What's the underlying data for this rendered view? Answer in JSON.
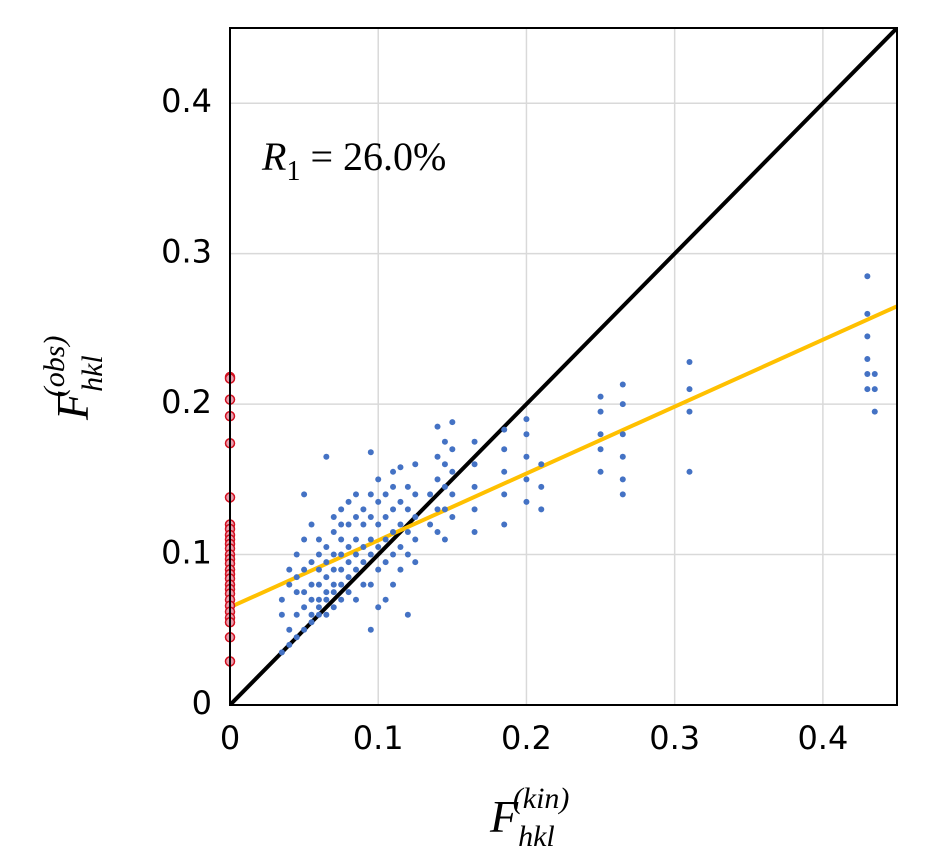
{
  "chart_data": {
    "type": "scatter",
    "xlabel": {
      "base": "F",
      "sub": "hkl",
      "sup": "(kin)"
    },
    "ylabel": {
      "base": "F",
      "sub": "hkl",
      "sup": "(obs)"
    },
    "annotation": {
      "base": "R",
      "sub": "1",
      "rest": " = 26.0%"
    },
    "xlim": [
      0,
      0.45
    ],
    "ylim": [
      0,
      0.45
    ],
    "xticks": [
      0,
      0.1,
      0.2,
      0.3,
      0.4
    ],
    "yticks": [
      0,
      0.1,
      0.2,
      0.3,
      0.4
    ],
    "grid": true,
    "series": [
      {
        "color": "#4472c4",
        "x": [
          0.035,
          0.035,
          0.035,
          0.04,
          0.04,
          0.04,
          0.04,
          0.045,
          0.045,
          0.045,
          0.045,
          0.045,
          0.05,
          0.05,
          0.05,
          0.05,
          0.05,
          0.05,
          0.055,
          0.055,
          0.055,
          0.055,
          0.055,
          0.055,
          0.06,
          0.06,
          0.06,
          0.06,
          0.06,
          0.06,
          0.06,
          0.065,
          0.065,
          0.065,
          0.065,
          0.065,
          0.065,
          0.065,
          0.07,
          0.07,
          0.07,
          0.07,
          0.07,
          0.07,
          0.07,
          0.075,
          0.075,
          0.075,
          0.075,
          0.075,
          0.075,
          0.075,
          0.08,
          0.08,
          0.08,
          0.08,
          0.08,
          0.08,
          0.085,
          0.085,
          0.085,
          0.085,
          0.085,
          0.085,
          0.09,
          0.09,
          0.09,
          0.09,
          0.09,
          0.095,
          0.095,
          0.095,
          0.095,
          0.095,
          0.095,
          0.095,
          0.1,
          0.1,
          0.1,
          0.1,
          0.1,
          0.1,
          0.105,
          0.105,
          0.105,
          0.105,
          0.105,
          0.11,
          0.11,
          0.11,
          0.11,
          0.11,
          0.11,
          0.115,
          0.115,
          0.115,
          0.115,
          0.115,
          0.12,
          0.12,
          0.12,
          0.12,
          0.12,
          0.125,
          0.125,
          0.125,
          0.125,
          0.125,
          0.135,
          0.135,
          0.14,
          0.14,
          0.14,
          0.14,
          0.14,
          0.145,
          0.145,
          0.145,
          0.145,
          0.145,
          0.15,
          0.15,
          0.15,
          0.15,
          0.15,
          0.165,
          0.165,
          0.165,
          0.165,
          0.165,
          0.185,
          0.185,
          0.185,
          0.185,
          0.185,
          0.2,
          0.2,
          0.2,
          0.2,
          0.2,
          0.21,
          0.21,
          0.21,
          0.25,
          0.25,
          0.25,
          0.25,
          0.25,
          0.265,
          0.265,
          0.265,
          0.265,
          0.265,
          0.265,
          0.31,
          0.31,
          0.31,
          0.31,
          0.43,
          0.43,
          0.43,
          0.43,
          0.43,
          0.43,
          0.435,
          0.435,
          0.435
        ],
        "values": [
          0.035,
          0.06,
          0.07,
          0.04,
          0.05,
          0.08,
          0.09,
          0.045,
          0.06,
          0.075,
          0.085,
          0.1,
          0.05,
          0.065,
          0.075,
          0.09,
          0.14,
          0.11,
          0.055,
          0.06,
          0.07,
          0.08,
          0.095,
          0.12,
          0.06,
          0.065,
          0.07,
          0.08,
          0.09,
          0.1,
          0.11,
          0.06,
          0.07,
          0.075,
          0.085,
          0.095,
          0.105,
          0.165,
          0.065,
          0.075,
          0.08,
          0.09,
          0.1,
          0.115,
          0.125,
          0.07,
          0.08,
          0.09,
          0.1,
          0.11,
          0.12,
          0.13,
          0.075,
          0.085,
          0.095,
          0.105,
          0.12,
          0.135,
          0.07,
          0.09,
          0.1,
          0.11,
          0.125,
          0.14,
          0.08,
          0.095,
          0.105,
          0.12,
          0.13,
          0.05,
          0.08,
          0.1,
          0.11,
          0.125,
          0.14,
          0.168,
          0.065,
          0.09,
          0.105,
          0.12,
          0.135,
          0.15,
          0.07,
          0.095,
          0.11,
          0.125,
          0.14,
          0.08,
          0.1,
          0.115,
          0.13,
          0.145,
          0.155,
          0.09,
          0.105,
          0.12,
          0.135,
          0.158,
          0.06,
          0.1,
          0.115,
          0.13,
          0.145,
          0.095,
          0.11,
          0.125,
          0.14,
          0.16,
          0.12,
          0.14,
          0.115,
          0.13,
          0.15,
          0.165,
          0.185,
          0.11,
          0.13,
          0.145,
          0.16,
          0.175,
          0.125,
          0.14,
          0.155,
          0.17,
          0.188,
          0.115,
          0.13,
          0.145,
          0.16,
          0.175,
          0.12,
          0.14,
          0.155,
          0.17,
          0.183,
          0.135,
          0.15,
          0.165,
          0.18,
          0.19,
          0.13,
          0.145,
          0.16,
          0.155,
          0.17,
          0.18,
          0.195,
          0.205,
          0.14,
          0.15,
          0.165,
          0.18,
          0.2,
          0.213,
          0.155,
          0.195,
          0.21,
          0.228,
          0.21,
          0.22,
          0.23,
          0.245,
          0.26,
          0.285,
          0.195,
          0.21,
          0.22
        ]
      },
      {
        "color": "#e8a0b0",
        "edgecolor": "#d01020",
        "x": [
          0,
          0,
          0,
          0,
          0,
          0,
          0,
          0,
          0,
          0,
          0,
          0,
          0,
          0,
          0,
          0,
          0,
          0,
          0,
          0,
          0,
          0,
          0,
          0,
          0,
          0,
          0,
          0
        ],
        "values": [
          0.218,
          0.217,
          0.203,
          0.192,
          0.174,
          0.138,
          0.12,
          0.117,
          0.113,
          0.11,
          0.107,
          0.104,
          0.1,
          0.097,
          0.094,
          0.09,
          0.087,
          0.084,
          0.08,
          0.077,
          0.074,
          0.07,
          0.066,
          0.062,
          0.058,
          0.055,
          0.045,
          0.029
        ]
      }
    ],
    "lines": [
      {
        "color": "#000000",
        "x": [
          0,
          0.45
        ],
        "values": [
          0,
          0.45
        ]
      },
      {
        "color": "#ffc000",
        "x": [
          0,
          0.45
        ],
        "values": [
          0.065,
          0.265
        ]
      }
    ]
  }
}
